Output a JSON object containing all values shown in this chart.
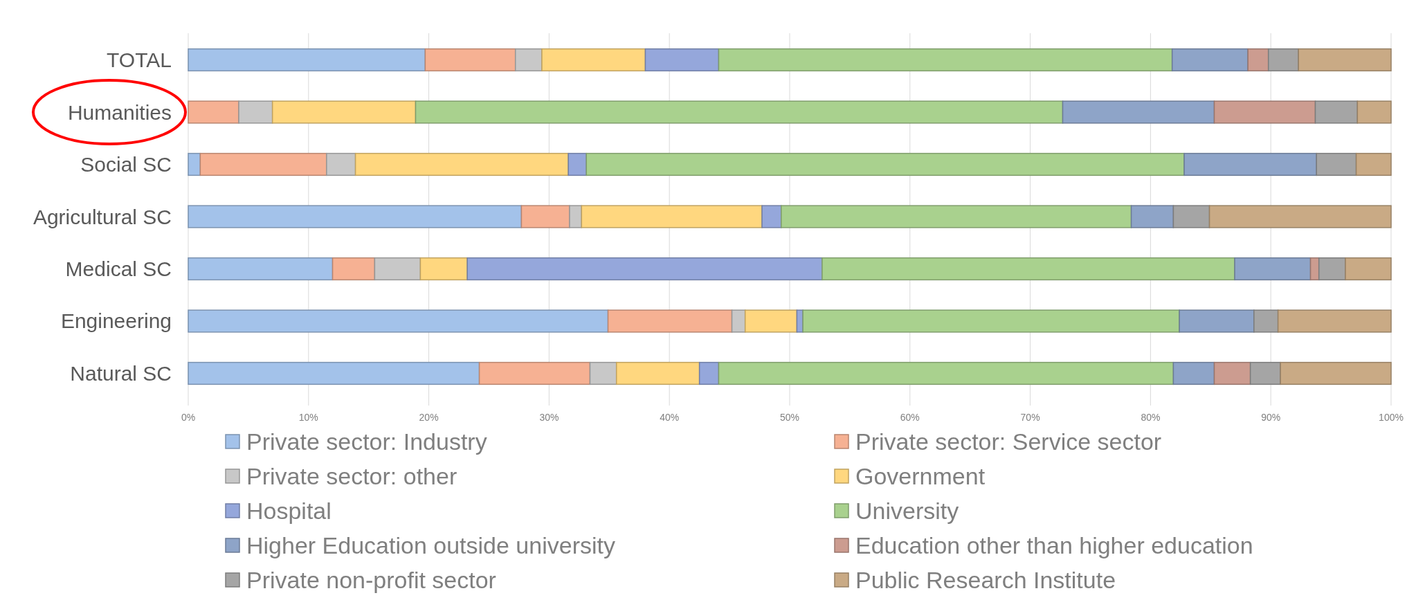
{
  "chart_data": {
    "type": "bar",
    "orientation": "horizontal",
    "stacked": true,
    "categories": [
      "TOTAL",
      "Humanities",
      "Social SC",
      "Agricultural SC",
      "Medical SC",
      "Engineering",
      "Natural SC"
    ],
    "series": [
      {
        "name": "Private sector: Industry",
        "color": "#a3c2ea",
        "values": [
          19.7,
          0,
          1.0,
          27.7,
          12.0,
          34.9,
          24.2
        ]
      },
      {
        "name": "Private sector: Service sector",
        "color": "#f6b193",
        "values": [
          7.5,
          4.2,
          10.5,
          4.0,
          3.5,
          10.3,
          9.2
        ]
      },
      {
        "name": "Private sector: other",
        "color": "#c8c8c8",
        "values": [
          2.2,
          2.8,
          2.4,
          1.0,
          3.8,
          1.1,
          2.2
        ]
      },
      {
        "name": "Government",
        "color": "#ffd77f",
        "values": [
          8.6,
          11.9,
          17.7,
          15.0,
          3.9,
          4.3,
          6.9
        ]
      },
      {
        "name": "Hospital",
        "color": "#95a7db",
        "values": [
          6.1,
          0,
          1.5,
          1.6,
          29.5,
          0.5,
          1.6
        ]
      },
      {
        "name": "University",
        "color": "#a9d18e",
        "values": [
          37.7,
          53.8,
          49.7,
          29.1,
          34.3,
          31.3,
          37.8
        ]
      },
      {
        "name": "Higher Education outside university",
        "color": "#8ea4c8",
        "values": [
          6.3,
          12.6,
          11.0,
          3.5,
          6.3,
          6.2,
          3.4
        ]
      },
      {
        "name": "Education other than higher education",
        "color": "#cc9c90",
        "values": [
          1.7,
          8.4,
          0,
          0,
          0.7,
          0,
          3.0
        ]
      },
      {
        "name": "Private non-profit sector",
        "color": "#a5a5a5",
        "values": [
          2.5,
          3.5,
          3.3,
          3.0,
          2.2,
          2.0,
          2.5
        ]
      },
      {
        "name": "Public Research Institute",
        "color": "#c9aa85",
        "values": [
          7.7,
          2.8,
          2.9,
          15.1,
          3.8,
          9.4,
          9.2
        ]
      }
    ],
    "xlim": [
      0,
      100
    ],
    "xticks": [
      {
        "value": 0,
        "label": "0%"
      },
      {
        "value": 10,
        "label": "10%"
      },
      {
        "value": 20,
        "label": "20%"
      },
      {
        "value": 30,
        "label": "30%"
      },
      {
        "value": 40,
        "label": "40%"
      },
      {
        "value": 50,
        "label": "50%"
      },
      {
        "value": 60,
        "label": "60%"
      },
      {
        "value": 70,
        "label": "70%"
      },
      {
        "value": 80,
        "label": "80%"
      },
      {
        "value": 90,
        "label": "90%"
      },
      {
        "value": 100,
        "label": "100%"
      }
    ],
    "grid": "x",
    "legend": "bottom"
  }
}
